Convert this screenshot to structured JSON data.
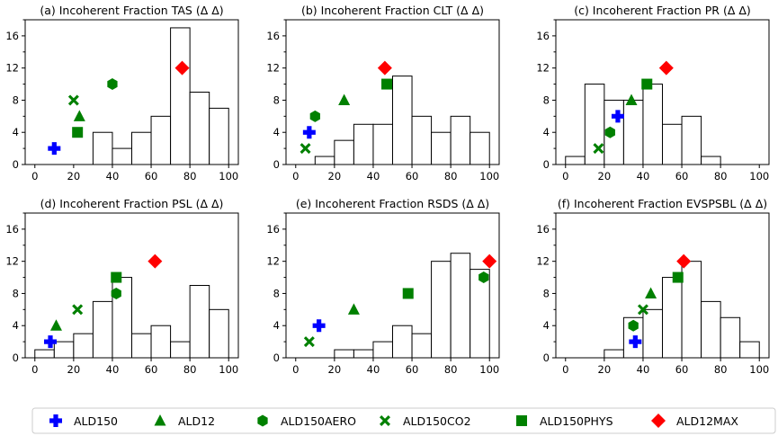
{
  "colors": {
    "blue": "#0000ff",
    "green": "#008000",
    "red": "#ff0000",
    "bars": "#000000"
  },
  "chart_data": {
    "type": "bar",
    "layout": "2x3 grid of histograms with overlaid markers",
    "shared_axes": {
      "xlim": [
        -5,
        105
      ],
      "xticks": [
        "0",
        "20",
        "40",
        "60",
        "80",
        "100"
      ],
      "ylim": [
        0,
        18
      ],
      "yticks": [
        "0",
        "4",
        "8",
        "12",
        "16"
      ],
      "bin_width": 10,
      "grid": false
    },
    "legend": {
      "placement": "bottom",
      "entries": [
        {
          "name": "ALD150",
          "marker": "plus",
          "color": "#0000ff"
        },
        {
          "name": "ALD12",
          "marker": "triangle",
          "color": "#008000"
        },
        {
          "name": "ALD150AERO",
          "marker": "hexagon",
          "color": "#008000"
        },
        {
          "name": "ALD150CO2",
          "marker": "x",
          "color": "#008000"
        },
        {
          "name": "ALD150PHYS",
          "marker": "square",
          "color": "#008000"
        },
        {
          "name": "ALD12MAX",
          "marker": "diamond",
          "color": "#ff0000"
        }
      ]
    },
    "panels": [
      {
        "title": "(a) Incoherent Fraction TAS (Δ Δ)",
        "bins": [
          {
            "start": 30,
            "count": 4
          },
          {
            "start": 40,
            "count": 2
          },
          {
            "start": 50,
            "count": 4
          },
          {
            "start": 60,
            "count": 6
          },
          {
            "start": 70,
            "count": 17
          },
          {
            "start": 80,
            "count": 9
          },
          {
            "start": 90,
            "count": 7
          }
        ],
        "points": {
          "ALD150": [
            10,
            2
          ],
          "ALD12": [
            23,
            6
          ],
          "ALD150AERO": [
            40,
            10
          ],
          "ALD150CO2": [
            20,
            8
          ],
          "ALD150PHYS": [
            22,
            4
          ],
          "ALD12MAX": [
            76,
            12
          ]
        }
      },
      {
        "title": "(b) Incoherent Fraction CLT (Δ Δ)",
        "bins": [
          {
            "start": 10,
            "count": 1
          },
          {
            "start": 20,
            "count": 3
          },
          {
            "start": 30,
            "count": 5
          },
          {
            "start": 40,
            "count": 5
          },
          {
            "start": 50,
            "count": 11
          },
          {
            "start": 60,
            "count": 6
          },
          {
            "start": 70,
            "count": 4
          },
          {
            "start": 80,
            "count": 6
          },
          {
            "start": 90,
            "count": 4
          }
        ],
        "points": {
          "ALD150": [
            7,
            4
          ],
          "ALD12": [
            25,
            8
          ],
          "ALD150AERO": [
            10,
            6
          ],
          "ALD150CO2": [
            5,
            2
          ],
          "ALD150PHYS": [
            47,
            10
          ],
          "ALD12MAX": [
            46,
            12
          ]
        }
      },
      {
        "title": "(c) Incoherent Fraction PR (Δ Δ)",
        "bins": [
          {
            "start": 0,
            "count": 1
          },
          {
            "start": 10,
            "count": 10
          },
          {
            "start": 20,
            "count": 8
          },
          {
            "start": 30,
            "count": 8
          },
          {
            "start": 40,
            "count": 10
          },
          {
            "start": 50,
            "count": 5
          },
          {
            "start": 60,
            "count": 6
          },
          {
            "start": 70,
            "count": 1
          }
        ],
        "points": {
          "ALD150": [
            27,
            6
          ],
          "ALD12": [
            34,
            8
          ],
          "ALD150AERO": [
            23,
            4
          ],
          "ALD150CO2": [
            17,
            2
          ],
          "ALD150PHYS": [
            42,
            10
          ],
          "ALD12MAX": [
            52,
            12
          ]
        }
      },
      {
        "title": "(d) Incoherent Fraction PSL (Δ Δ)",
        "bins": [
          {
            "start": 0,
            "count": 1
          },
          {
            "start": 10,
            "count": 2
          },
          {
            "start": 20,
            "count": 3
          },
          {
            "start": 30,
            "count": 7
          },
          {
            "start": 40,
            "count": 10
          },
          {
            "start": 50,
            "count": 3
          },
          {
            "start": 60,
            "count": 4
          },
          {
            "start": 70,
            "count": 2
          },
          {
            "start": 80,
            "count": 9
          },
          {
            "start": 90,
            "count": 6
          }
        ],
        "points": {
          "ALD150": [
            8,
            2
          ],
          "ALD12": [
            11,
            4
          ],
          "ALD150AERO": [
            42,
            8
          ],
          "ALD150CO2": [
            22,
            6
          ],
          "ALD150PHYS": [
            42,
            10
          ],
          "ALD12MAX": [
            62,
            12
          ]
        }
      },
      {
        "title": "(e) Incoherent Fraction RSDS (Δ Δ)",
        "bins": [
          {
            "start": 20,
            "count": 1
          },
          {
            "start": 30,
            "count": 1
          },
          {
            "start": 40,
            "count": 2
          },
          {
            "start": 50,
            "count": 4
          },
          {
            "start": 60,
            "count": 3
          },
          {
            "start": 70,
            "count": 12
          },
          {
            "start": 80,
            "count": 13
          },
          {
            "start": 90,
            "count": 11
          }
        ],
        "points": {
          "ALD150": [
            12,
            4
          ],
          "ALD12": [
            30,
            6
          ],
          "ALD150AERO": [
            97,
            10
          ],
          "ALD150CO2": [
            7,
            2
          ],
          "ALD150PHYS": [
            58,
            8
          ],
          "ALD12MAX": [
            100,
            12
          ]
        }
      },
      {
        "title": "(f) Incoherent Fraction EVSPSBL (Δ Δ)",
        "bins": [
          {
            "start": 20,
            "count": 1
          },
          {
            "start": 30,
            "count": 5
          },
          {
            "start": 40,
            "count": 6
          },
          {
            "start": 50,
            "count": 10
          },
          {
            "start": 60,
            "count": 12
          },
          {
            "start": 70,
            "count": 7
          },
          {
            "start": 80,
            "count": 5
          },
          {
            "start": 90,
            "count": 2
          }
        ],
        "points": {
          "ALD150": [
            36,
            2
          ],
          "ALD12": [
            44,
            8
          ],
          "ALD150AERO": [
            35,
            4
          ],
          "ALD150CO2": [
            40,
            6
          ],
          "ALD150PHYS": [
            58,
            10
          ],
          "ALD12MAX": [
            61,
            12
          ]
        }
      }
    ]
  }
}
